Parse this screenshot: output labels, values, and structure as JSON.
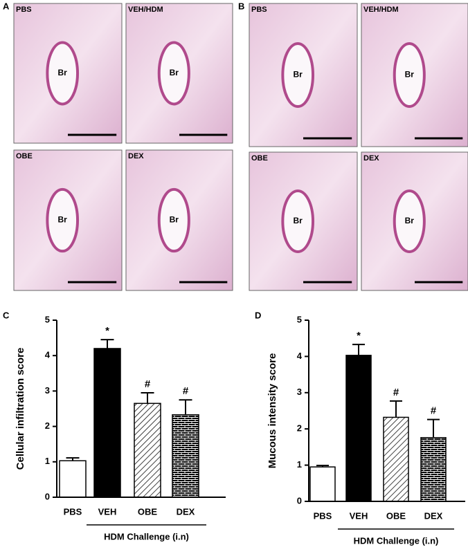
{
  "panels": [
    {
      "letter": "A",
      "images": [
        {
          "label": "PBS",
          "region": "Br"
        },
        {
          "label": "VEH/HDM",
          "region": "Br"
        },
        {
          "label": "OBE",
          "region": "Br"
        },
        {
          "label": "DEX",
          "region": "Br"
        }
      ]
    },
    {
      "letter": "B",
      "images": [
        {
          "label": "PBS",
          "region": "Br"
        },
        {
          "label": "VEH/HDM",
          "region": "Br"
        },
        {
          "label": "OBE",
          "region": "Br"
        },
        {
          "label": "DEX",
          "region": "Br"
        }
      ]
    }
  ],
  "chart_data": [
    {
      "type": "bar",
      "panel": "C",
      "ylabel": "Cellular infiltration score",
      "categories": [
        "PBS",
        "VEH",
        "OBE",
        "DEX"
      ],
      "values": [
        1.03,
        4.2,
        2.65,
        2.33
      ],
      "errors": [
        0.08,
        0.25,
        0.3,
        0.42
      ],
      "annotations": [
        null,
        "*",
        "#",
        "#"
      ],
      "fills": [
        "white",
        "black",
        "hatch",
        "brick"
      ],
      "group_label": "HDM Challenge (i.n)",
      "ylim": [
        0,
        5
      ],
      "yticks": [
        0,
        1,
        2,
        3,
        4,
        5
      ]
    },
    {
      "type": "bar",
      "panel": "D",
      "ylabel": "Mucous intensity score",
      "categories": [
        "PBS",
        "VEH",
        "OBE",
        "DEX"
      ],
      "values": [
        0.95,
        4.03,
        2.32,
        1.76
      ],
      "errors": [
        0.04,
        0.3,
        0.45,
        0.5
      ],
      "annotations": [
        null,
        "*",
        "#",
        "#"
      ],
      "fills": [
        "white",
        "black",
        "hatch",
        "brick"
      ],
      "group_label": "HDM Challenge (i.n)",
      "ylim": [
        0,
        5
      ],
      "yticks": [
        0,
        1,
        2,
        3,
        4,
        5
      ]
    }
  ]
}
